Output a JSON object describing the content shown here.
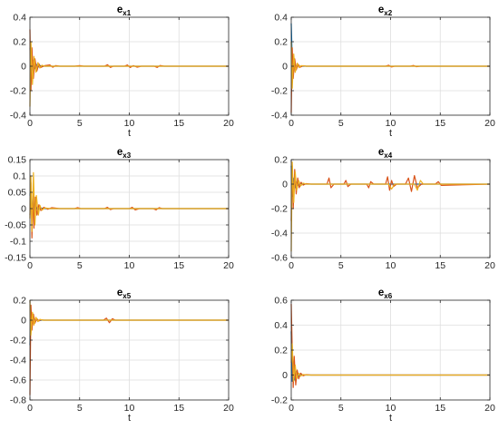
{
  "colors": {
    "series1": "#0072BD",
    "series2": "#D95319",
    "series3": "#EDB120",
    "grid": "#dedede",
    "axis": "#262626"
  },
  "chart_data": [
    {
      "type": "line",
      "title": "e",
      "title_subscript": "x1",
      "xlabel": "t",
      "ylabel": "",
      "xlim": [
        0,
        20
      ],
      "ylim": [
        -0.4,
        0.4
      ],
      "xticks": [
        0,
        5,
        10,
        15,
        20
      ],
      "yticks": [
        -0.4,
        -0.2,
        0,
        0.2,
        0.4
      ],
      "yticklabels": [
        "-0.4",
        "-0.2",
        "0",
        "0.2",
        "0.4"
      ],
      "grid": true,
      "series": [
        {
          "color": "series1",
          "x": [
            0,
            0.1,
            0.2,
            0.3,
            0.45,
            0.6,
            0.8,
            1.0,
            1.3,
            2,
            20
          ],
          "y": [
            0.15,
            0.1,
            -0.05,
            0.05,
            -0.02,
            0.02,
            -0.01,
            0.005,
            0,
            0,
            0
          ]
        },
        {
          "color": "series2",
          "x": [
            0,
            0.1,
            0.2,
            0.35,
            0.5,
            0.7,
            0.9,
            1.1,
            1.5,
            2.0,
            2.3,
            2.6,
            3,
            4.5,
            5,
            5.4,
            7.5,
            7.8,
            8.1,
            8.4,
            9.5,
            9.8,
            10.1,
            10.4,
            10.8,
            11.2,
            12.5,
            12.8,
            13.1,
            13.5,
            20
          ],
          "y": [
            0.3,
            -0.2,
            0.15,
            -0.1,
            0.06,
            -0.04,
            0.02,
            -0.01,
            0.005,
            0.01,
            -0.008,
            0.005,
            0,
            0,
            0.005,
            0,
            0,
            0.012,
            -0.01,
            0,
            0,
            0.01,
            -0.01,
            0.005,
            -0.008,
            0,
            0,
            -0.01,
            0.006,
            0,
            0
          ]
        },
        {
          "color": "series3",
          "x": [
            0,
            0.1,
            0.25,
            0.4,
            0.6,
            0.8,
            1.0,
            1.2,
            1.5,
            2,
            20
          ],
          "y": [
            -0.33,
            0.2,
            -0.15,
            0.08,
            -0.05,
            0.03,
            -0.015,
            0.008,
            0,
            0,
            0
          ]
        }
      ]
    },
    {
      "type": "line",
      "title": "e",
      "title_subscript": "x2",
      "xlabel": "t",
      "ylabel": "",
      "xlim": [
        0,
        20
      ],
      "ylim": [
        -0.4,
        0.4
      ],
      "xticks": [
        0,
        5,
        10,
        15,
        20
      ],
      "yticks": [
        -0.4,
        -0.2,
        0,
        0.2,
        0.4
      ],
      "yticklabels": [
        "-0.4",
        "-0.2",
        "0",
        "0.2",
        "0.4"
      ],
      "grid": true,
      "series": [
        {
          "color": "series1",
          "x": [
            0,
            0.1,
            0.2,
            0.3,
            0.45,
            0.6,
            0.8,
            1.0,
            1.5,
            20
          ],
          "y": [
            0.35,
            0.05,
            -0.08,
            0.04,
            -0.02,
            0.01,
            -0.005,
            0,
            0,
            0
          ]
        },
        {
          "color": "series2",
          "x": [
            0,
            0.1,
            0.2,
            0.35,
            0.5,
            0.7,
            0.9,
            1.2,
            1.5,
            2,
            9.5,
            9.8,
            10.1,
            10.4,
            12,
            12.3,
            12.6,
            13,
            20
          ],
          "y": [
            -0.38,
            0.15,
            -0.1,
            0.06,
            -0.03,
            0.015,
            -0.008,
            0.004,
            0,
            0,
            0,
            0.008,
            -0.006,
            0,
            0,
            0.006,
            -0.004,
            0,
            0
          ]
        },
        {
          "color": "series3",
          "x": [
            0,
            0.1,
            0.25,
            0.4,
            0.6,
            0.8,
            1.0,
            1.5,
            20
          ],
          "y": [
            0.2,
            -0.18,
            0.1,
            -0.05,
            0.025,
            -0.012,
            0.005,
            0,
            0
          ]
        }
      ]
    },
    {
      "type": "line",
      "title": "e",
      "title_subscript": "x3",
      "xlabel": "",
      "ylabel": "",
      "xlim": [
        0,
        20
      ],
      "ylim": [
        -0.15,
        0.15
      ],
      "xticks": [
        0,
        5,
        10,
        15,
        20
      ],
      "yticks": [
        -0.15,
        -0.1,
        -0.05,
        0,
        0.05,
        0.1,
        0.15
      ],
      "yticklabels": [
        "-0.15",
        "-0.1",
        "-0.05",
        "0",
        "0.05",
        "0.1",
        "0.15"
      ],
      "grid": true,
      "series": [
        {
          "color": "series1",
          "x": [
            0,
            0.1,
            0.2,
            0.3,
            0.45,
            0.6,
            0.8,
            1.0,
            1.5,
            20
          ],
          "y": [
            0.04,
            0.06,
            -0.02,
            0.03,
            -0.01,
            0.008,
            -0.004,
            0.002,
            0,
            0
          ]
        },
        {
          "color": "series2",
          "x": [
            0,
            0.1,
            0.2,
            0.3,
            0.4,
            0.55,
            0.7,
            0.9,
            1.1,
            1.4,
            1.8,
            2.2,
            3,
            4.5,
            4.8,
            5.1,
            7.5,
            7.8,
            8.1,
            8.4,
            10,
            10.3,
            10.6,
            11,
            12.4,
            12.7,
            13,
            13.3,
            20
          ],
          "y": [
            -0.02,
            0.08,
            -0.09,
            0.05,
            -0.06,
            0.035,
            -0.02,
            0.012,
            -0.006,
            0.004,
            -0.002,
            0.003,
            0,
            0,
            0.003,
            0,
            0,
            0.004,
            -0.003,
            0,
            0,
            0.004,
            -0.004,
            0,
            0,
            -0.004,
            0.003,
            0,
            0
          ]
        },
        {
          "color": "series3",
          "x": [
            0,
            0.1,
            0.2,
            0.35,
            0.5,
            0.65,
            0.85,
            1.0,
            1.2,
            1.5,
            2,
            20
          ],
          "y": [
            -0.03,
            0.1,
            -0.07,
            0.11,
            -0.05,
            0.04,
            -0.02,
            0.01,
            -0.005,
            0.002,
            0,
            0
          ]
        }
      ]
    },
    {
      "type": "line",
      "title": "e",
      "title_subscript": "x4",
      "xlabel": "",
      "ylabel": "",
      "xlim": [
        0,
        20
      ],
      "ylim": [
        -0.6,
        0.2
      ],
      "xticks": [
        0,
        5,
        10,
        15,
        20
      ],
      "yticks": [
        -0.6,
        -0.4,
        -0.2,
        0,
        0.2
      ],
      "yticklabels": [
        "-0.6",
        "-0.4",
        "-0.2",
        "0",
        "0.2"
      ],
      "grid": true,
      "series": [
        {
          "color": "series1",
          "x": [
            0,
            0.1,
            0.2,
            0.35,
            0.5,
            0.7,
            0.9,
            1.2,
            1.6,
            20
          ],
          "y": [
            0.15,
            -0.1,
            0.05,
            -0.03,
            0.02,
            -0.01,
            0.005,
            0,
            0,
            0
          ]
        },
        {
          "color": "series2",
          "x": [
            0,
            0.1,
            0.2,
            0.35,
            0.5,
            0.65,
            0.8,
            1.0,
            1.2,
            1.5,
            2,
            3,
            3.6,
            3.8,
            4.0,
            4.3,
            5.3,
            5.5,
            5.7,
            6,
            7.6,
            7.8,
            8.0,
            8.3,
            9.5,
            9.7,
            9.9,
            10.1,
            10.3,
            10.6,
            11.5,
            11.8,
            12.1,
            12.4,
            12.7,
            13.1,
            14.5,
            14.8,
            15.1,
            20
          ],
          "y": [
            -0.3,
            0.15,
            -0.2,
            0.12,
            -0.08,
            0.05,
            -0.03,
            0.015,
            -0.008,
            0.004,
            0,
            0,
            0,
            0.05,
            -0.03,
            0,
            0,
            0.03,
            -0.02,
            0,
            0,
            -0.03,
            0.02,
            0,
            0,
            0.06,
            -0.05,
            0.03,
            -0.02,
            0,
            0,
            0.05,
            -0.06,
            0.07,
            -0.03,
            0,
            0,
            0.02,
            -0.01,
            0
          ]
        },
        {
          "color": "series3",
          "x": [
            0,
            0.1,
            0.25,
            0.4,
            0.55,
            0.75,
            0.95,
            1.2,
            1.5,
            2,
            9.8,
            10.1,
            10.4,
            12.4,
            12.7,
            13.0,
            13.3,
            20
          ],
          "y": [
            -0.55,
            0.18,
            -0.15,
            0.1,
            -0.05,
            0.03,
            -0.015,
            0.008,
            0,
            0,
            0,
            -0.04,
            0,
            0,
            -0.05,
            0.03,
            0,
            0
          ]
        }
      ]
    },
    {
      "type": "line",
      "title": "e",
      "title_subscript": "x5",
      "xlabel": "t",
      "ylabel": "",
      "xlim": [
        0,
        20
      ],
      "ylim": [
        -0.8,
        0.2
      ],
      "xticks": [
        0,
        5,
        10,
        15,
        20
      ],
      "yticks": [
        -0.8,
        -0.6,
        -0.4,
        -0.2,
        0,
        0.2
      ],
      "yticklabels": [
        "-0.8",
        "-0.6",
        "-0.4",
        "-0.2",
        "0",
        "0.2"
      ],
      "grid": true,
      "series": [
        {
          "color": "series1",
          "x": [
            0,
            0.1,
            0.2,
            0.35,
            0.5,
            0.7,
            0.9,
            1.2,
            1.6,
            20
          ],
          "y": [
            -0.25,
            0.1,
            -0.05,
            0.03,
            -0.02,
            0.01,
            -0.005,
            0,
            0,
            0
          ]
        },
        {
          "color": "series2",
          "x": [
            0,
            0.1,
            0.2,
            0.35,
            0.5,
            0.7,
            0.9,
            1.1,
            1.4,
            2,
            7.4,
            7.7,
            8.0,
            8.3,
            8.6,
            20
          ],
          "y": [
            -0.75,
            0.15,
            -0.1,
            0.06,
            -0.03,
            0.015,
            -0.008,
            0.004,
            0,
            0,
            0,
            0.02,
            -0.025,
            0.015,
            0,
            0
          ]
        },
        {
          "color": "series3",
          "x": [
            0,
            0.1,
            0.25,
            0.4,
            0.6,
            0.8,
            1.0,
            1.3,
            1.8,
            20
          ],
          "y": [
            0.2,
            -0.15,
            0.08,
            -0.05,
            0.03,
            -0.015,
            0.008,
            0,
            0,
            0
          ]
        }
      ]
    },
    {
      "type": "line",
      "title": "e",
      "title_subscript": "x6",
      "xlabel": "t",
      "ylabel": "",
      "xlim": [
        0,
        20
      ],
      "ylim": [
        -0.2,
        0.6
      ],
      "xticks": [
        0,
        5,
        10,
        15,
        20
      ],
      "yticks": [
        -0.2,
        0,
        0.2,
        0.4,
        0.6
      ],
      "yticklabels": [
        "-0.2",
        "0",
        "0.2",
        "0.4",
        "0.6"
      ],
      "grid": true,
      "series": [
        {
          "color": "series1",
          "x": [
            0,
            0.1,
            0.2,
            0.35,
            0.5,
            0.7,
            0.9,
            1.2,
            1.6,
            20
          ],
          "y": [
            0.35,
            -0.05,
            0.1,
            -0.04,
            0.03,
            -0.015,
            0.008,
            0,
            0,
            0
          ]
        },
        {
          "color": "series2",
          "x": [
            0,
            0.1,
            0.2,
            0.3,
            0.45,
            0.6,
            0.75,
            0.95,
            1.2,
            1.5,
            2,
            20
          ],
          "y": [
            0.57,
            0.2,
            -0.1,
            0.15,
            -0.08,
            0.04,
            -0.03,
            0.015,
            -0.006,
            0.003,
            0,
            0
          ]
        },
        {
          "color": "series3",
          "x": [
            0,
            0.1,
            0.25,
            0.4,
            0.55,
            0.75,
            0.95,
            1.2,
            1.6,
            20
          ],
          "y": [
            0.1,
            0.25,
            -0.05,
            0.08,
            -0.03,
            0.015,
            -0.008,
            0.004,
            0,
            0
          ]
        }
      ]
    }
  ]
}
